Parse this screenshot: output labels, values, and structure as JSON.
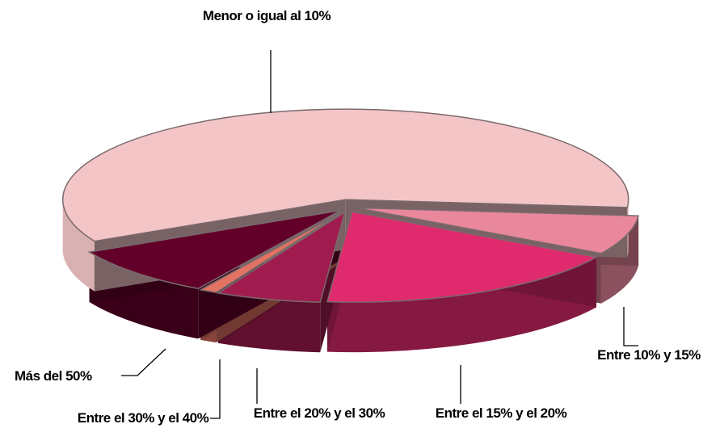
{
  "chart_data": {
    "type": "pie",
    "categories": [
      "Entre 10% y 15%",
      "Entre el 15% y el 20%",
      "Entre el 20% y el 30%",
      "Entre el 30% y el 40%",
      "Más del 50%",
      "Menor o igual al 10%"
    ],
    "values": [
      7,
      18,
      6,
      1,
      9,
      59
    ],
    "colors": [
      "#e9879d",
      "#e02a6e",
      "#a01c4e",
      "#e27262",
      "#62002a",
      "#f3c5c7"
    ]
  }
}
